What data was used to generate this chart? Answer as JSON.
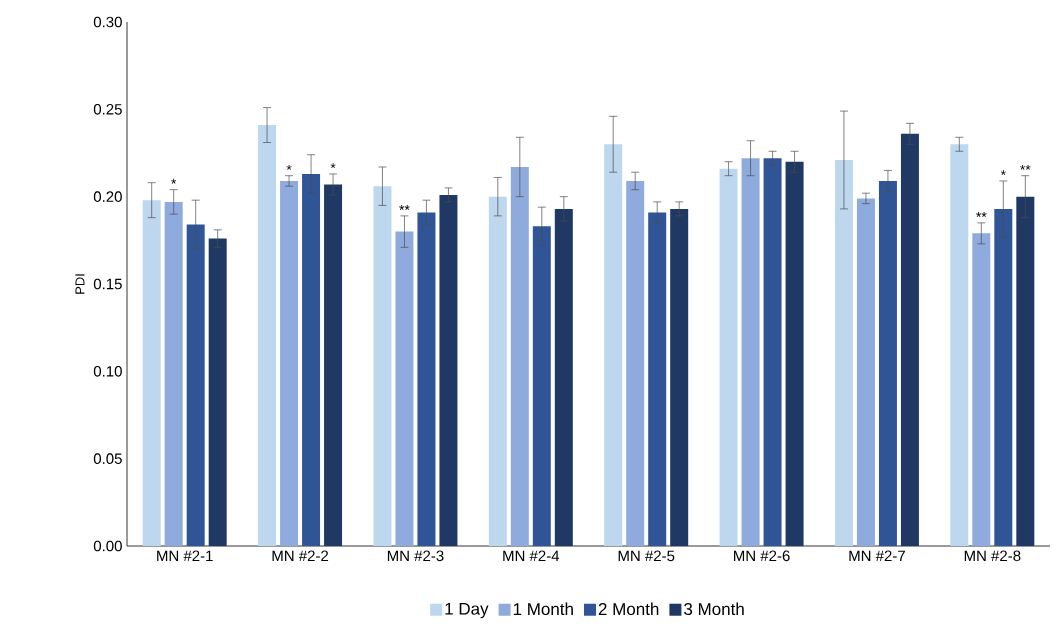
{
  "chart_data": {
    "type": "bar",
    "ylabel": "PDI",
    "categories": [
      "MN #2-1",
      "MN #2-2",
      "MN #2-3",
      "MN #2-4",
      "MN #2-5",
      "MN #2-6",
      "MN #2-7",
      "MN #2-8"
    ],
    "series": [
      {
        "name": "1 Day",
        "color": "#bdd7ee",
        "values": [
          0.198,
          0.241,
          0.206,
          0.2,
          0.23,
          0.216,
          0.221,
          0.23
        ],
        "errors": [
          0.01,
          0.01,
          0.011,
          0.011,
          0.016,
          0.004,
          0.028,
          0.004
        ]
      },
      {
        "name": "1 Month",
        "color": "#8faadc",
        "values": [
          0.197,
          0.209,
          0.18,
          0.217,
          0.209,
          0.222,
          0.199,
          0.179
        ],
        "errors": [
          0.007,
          0.003,
          0.009,
          0.017,
          0.005,
          0.01,
          0.003,
          0.006
        ],
        "value_labels": [
          "*",
          "*",
          "**",
          null,
          null,
          null,
          null,
          "**"
        ]
      },
      {
        "name": "2 Month",
        "color": "#2f5597",
        "values": [
          0.184,
          0.213,
          0.191,
          0.183,
          0.191,
          0.222,
          0.209,
          0.193
        ],
        "errors": [
          0.014,
          0.011,
          0.007,
          0.011,
          0.006,
          0.004,
          0.006,
          0.016
        ],
        "value_labels": [
          null,
          null,
          null,
          null,
          null,
          null,
          null,
          "*"
        ]
      },
      {
        "name": "3 Month",
        "color": "#1f3864",
        "values": [
          0.176,
          0.207,
          0.201,
          0.193,
          0.193,
          0.22,
          0.236,
          0.2
        ],
        "errors": [
          0.005,
          0.006,
          0.004,
          0.007,
          0.004,
          0.006,
          0.006,
          0.012
        ],
        "value_labels": [
          null,
          "*",
          null,
          null,
          null,
          null,
          null,
          "**"
        ]
      }
    ],
    "ylim": [
      0,
      0.3
    ],
    "yticks": [
      {
        "value": 0,
        "label": "0.00"
      },
      {
        "value": 0.05,
        "label": "0.05"
      },
      {
        "value": 0.1,
        "label": "0.10"
      },
      {
        "value": 0.15,
        "label": "0.15"
      },
      {
        "value": 0.2,
        "label": "0.20"
      },
      {
        "value": 0.25,
        "label": "0.25"
      },
      {
        "value": 0.3,
        "label": "0.30"
      }
    ],
    "grid": false,
    "legend": "bottom"
  }
}
